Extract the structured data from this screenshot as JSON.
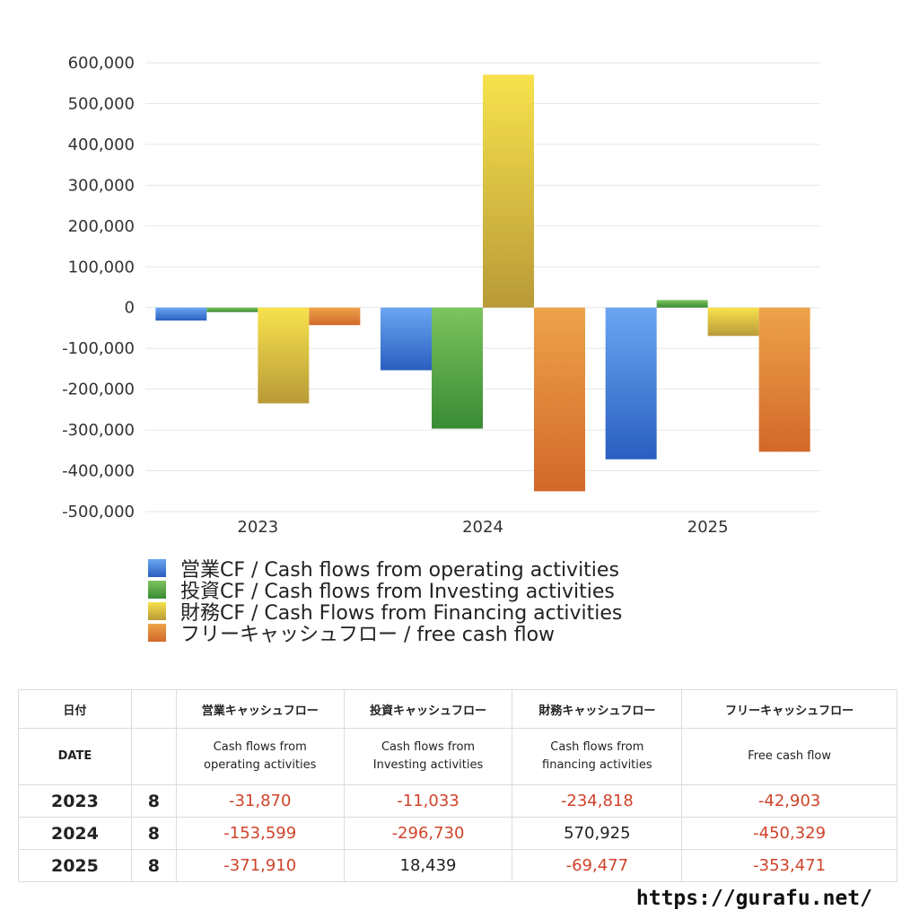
{
  "chart_data": {
    "type": "bar",
    "categories": [
      "2023",
      "2024",
      "2025"
    ],
    "series": [
      {
        "name": "営業CF / Cash flows from operating activities",
        "values": [
          -31870,
          -153599,
          -371910
        ],
        "color_top": "#6aa6f2",
        "color_bottom": "#2a5fc0"
      },
      {
        "name": "投資CF / Cash flows from Investing activities",
        "values": [
          -11033,
          -296730,
          18439
        ],
        "color_top": "#7cc45e",
        "color_bottom": "#3a8b35"
      },
      {
        "name": "財務CF / Cash Flows from Financing activities",
        "values": [
          -234818,
          570925,
          -69477
        ],
        "color_top": "#f7e24c",
        "color_bottom": "#b89a38"
      },
      {
        "name": "フリーキャッシュフロー / free cash flow",
        "values": [
          -42903,
          -450329,
          -353471
        ],
        "color_top": "#eea34a",
        "color_bottom": "#d2682a"
      }
    ],
    "ylim": [
      -500000,
      600000
    ],
    "yticks": [
      600000,
      500000,
      400000,
      300000,
      200000,
      100000,
      0,
      -100000,
      -200000,
      -300000,
      -400000,
      -500000
    ],
    "ytick_labels": [
      "600,000",
      "500,000",
      "400,000",
      "300,000",
      "200,000",
      "100,000",
      "0",
      "-100,000",
      "-200,000",
      "-300,000",
      "-400,000",
      "-500,000"
    ],
    "grid": true,
    "legend_position": "bottom"
  },
  "table": {
    "header_jp": [
      "日付",
      "",
      "営業キャッシュフロー",
      "投資キャッシュフロー",
      "財務キャッシュフロー",
      "フリーキャッシュフロー"
    ],
    "header_en": [
      [
        "DATE",
        ""
      ],
      [
        "",
        ""
      ],
      [
        "Cash flows from",
        "operating activities"
      ],
      [
        "Cash flows from",
        "Investing activities"
      ],
      [
        "Cash flows from",
        "financing activities"
      ],
      [
        "Free cash flow",
        ""
      ]
    ],
    "rows": [
      {
        "year": "2023",
        "month": "8",
        "values": [
          "-31,870",
          "-11,033",
          "-234,818",
          "-42,903"
        ]
      },
      {
        "year": "2024",
        "month": "8",
        "values": [
          "-153,599",
          "-296,730",
          "570,925",
          "-450,329"
        ]
      },
      {
        "year": "2025",
        "month": "8",
        "values": [
          "-371,910",
          "18,439",
          "-69,477",
          "-353,471"
        ]
      }
    ]
  },
  "footer": {
    "url": "https://gurafu.net/"
  }
}
